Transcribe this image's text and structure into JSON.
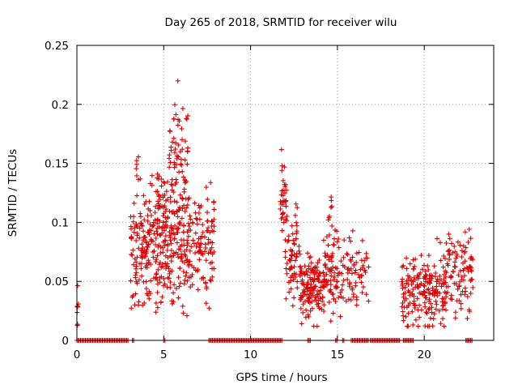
{
  "chart_data": {
    "type": "scatter",
    "title": "Day 265 of 2018, SRMTID for receiver wilu",
    "xlabel": "GPS time / hours",
    "ylabel": "SRMTID / TECUs",
    "xlim": [
      0,
      24
    ],
    "ylim": [
      0,
      0.25
    ],
    "x_ticks": [
      0,
      5,
      10,
      15,
      20
    ],
    "x_tick_labels": [
      "0",
      "5",
      "10",
      "15",
      "20"
    ],
    "y_ticks": [
      0,
      0.05,
      0.1,
      0.15,
      0.2,
      0.25
    ],
    "y_tick_labels": [
      "0",
      "0.05",
      "0.1",
      "0.15",
      "0.2",
      "0.25"
    ],
    "grid": true,
    "marker": "plus",
    "color": "#dd0000",
    "clusters": [
      {
        "x_range": [
          0.0,
          0.12
        ],
        "y_mean": 0.028,
        "y_spread": 0.012,
        "count": 8,
        "seed": 11
      },
      {
        "x_range": [
          3.1,
          4.4
        ],
        "y_mean": 0.082,
        "y_spread": 0.03,
        "count": 130,
        "seed": 21
      },
      {
        "x_range": [
          3.4,
          3.6
        ],
        "y_mean": 0.15,
        "y_spread": 0.012,
        "count": 5,
        "seed": 23
      },
      {
        "x_range": [
          4.4,
          5.5
        ],
        "y_mean": 0.088,
        "y_spread": 0.032,
        "count": 150,
        "seed": 31
      },
      {
        "x_range": [
          5.3,
          6.4
        ],
        "y_mean": 0.16,
        "y_spread": 0.03,
        "count": 60,
        "seed": 41
      },
      {
        "x_range": [
          5.5,
          6.4
        ],
        "y_mean": 0.085,
        "y_spread": 0.032,
        "count": 90,
        "seed": 43
      },
      {
        "x_range": [
          6.4,
          7.9
        ],
        "y_mean": 0.085,
        "y_spread": 0.028,
        "count": 110,
        "seed": 51
      },
      {
        "x_range": [
          11.7,
          12.1
        ],
        "y_mean": 0.115,
        "y_spread": 0.022,
        "count": 35,
        "seed": 61
      },
      {
        "x_range": [
          12.0,
          12.9
        ],
        "y_mean": 0.07,
        "y_spread": 0.022,
        "count": 70,
        "seed": 71
      },
      {
        "x_range": [
          12.9,
          14.2
        ],
        "y_mean": 0.045,
        "y_spread": 0.018,
        "count": 130,
        "seed": 81
      },
      {
        "x_range": [
          14.2,
          15.4
        ],
        "y_mean": 0.058,
        "y_spread": 0.02,
        "count": 90,
        "seed": 91
      },
      {
        "x_range": [
          14.4,
          14.7
        ],
        "y_mean": 0.105,
        "y_spread": 0.01,
        "count": 8,
        "seed": 93
      },
      {
        "x_range": [
          15.4,
          16.8
        ],
        "y_mean": 0.058,
        "y_spread": 0.018,
        "count": 60,
        "seed": 101
      },
      {
        "x_range": [
          18.7,
          20.0
        ],
        "y_mean": 0.042,
        "y_spread": 0.018,
        "count": 90,
        "seed": 111
      },
      {
        "x_range": [
          20.0,
          21.3
        ],
        "y_mean": 0.045,
        "y_spread": 0.02,
        "count": 110,
        "seed": 121
      },
      {
        "x_range": [
          21.3,
          22.8
        ],
        "y_mean": 0.058,
        "y_spread": 0.02,
        "count": 90,
        "seed": 131
      }
    ],
    "zero_segments": [
      [
        0.0,
        3.0
      ],
      [
        3.2,
        3.3
      ],
      [
        5.0,
        5.1
      ],
      [
        7.6,
        11.8
      ],
      [
        13.3,
        13.5
      ],
      [
        14.9,
        15.0
      ],
      [
        15.3,
        15.4
      ],
      [
        15.8,
        16.8
      ],
      [
        16.9,
        18.6
      ],
      [
        18.8,
        19.4
      ],
      [
        22.4,
        22.8
      ]
    ],
    "zero_step": 0.07
  }
}
